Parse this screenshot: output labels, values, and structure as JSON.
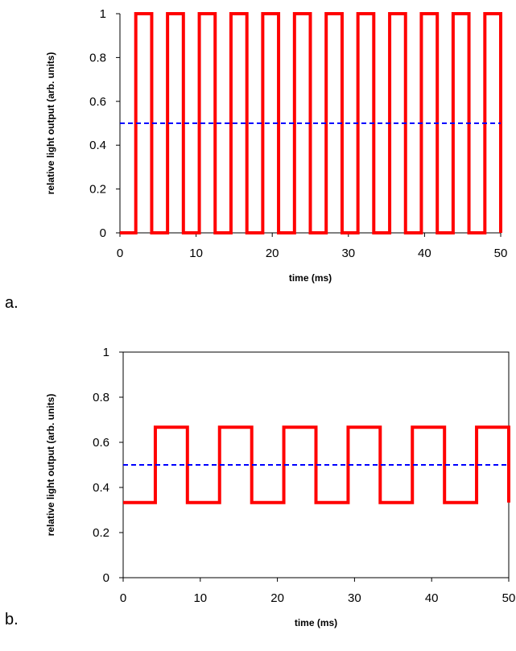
{
  "chart_data": [
    {
      "type": "line",
      "panel_label": "a.",
      "xlabel": "time (ms)",
      "ylabel": "relative light output (arb. units)",
      "xlim": [
        0,
        50
      ],
      "ylim": [
        0,
        1
      ],
      "xticks": [
        "0",
        "10",
        "20",
        "30",
        "40",
        "50"
      ],
      "yticks": [
        "0",
        "0.2",
        "0.4",
        "0.6",
        "0.8",
        "1"
      ],
      "grid": false,
      "legend": "none",
      "series": [
        {
          "style": "solid",
          "color": "#ff0000",
          "x": [
            0,
            2.08,
            2.08,
            4.17,
            4.17,
            6.25,
            6.25,
            8.33,
            8.33,
            10.42,
            10.42,
            12.5,
            12.5,
            14.58,
            14.58,
            16.67,
            16.67,
            18.75,
            18.75,
            20.83,
            20.83,
            22.92,
            22.92,
            25,
            25,
            27.08,
            27.08,
            29.17,
            29.17,
            31.25,
            31.25,
            33.33,
            33.33,
            35.42,
            35.42,
            37.5,
            37.5,
            39.58,
            39.58,
            41.67,
            41.67,
            43.75,
            43.75,
            45.83,
            45.83,
            47.92,
            47.92,
            50,
            50
          ],
          "y": [
            0,
            0,
            1,
            1,
            0,
            0,
            1,
            1,
            0,
            0,
            1,
            1,
            0,
            0,
            1,
            1,
            0,
            0,
            1,
            1,
            0,
            0,
            1,
            1,
            0,
            0,
            1,
            1,
            0,
            0,
            1,
            1,
            0,
            0,
            1,
            1,
            0,
            0,
            1,
            1,
            0,
            0,
            1,
            1,
            0,
            0,
            1,
            1,
            0
          ]
        },
        {
          "style": "dashed",
          "color": "#0000ff",
          "x": [
            0,
            50
          ],
          "y": [
            0.5,
            0.5
          ]
        }
      ]
    },
    {
      "type": "line",
      "panel_label": "b.",
      "xlabel": "time (ms)",
      "ylabel": "relative light output (arb. units)",
      "xlim": [
        0,
        50
      ],
      "ylim": [
        0,
        1
      ],
      "xticks": [
        "0",
        "10",
        "20",
        "30",
        "40",
        "50"
      ],
      "yticks": [
        "0",
        "0.2",
        "0.4",
        "0.6",
        "0.8",
        "1"
      ],
      "grid": false,
      "legend": "none",
      "series": [
        {
          "style": "solid",
          "color": "#ff0000",
          "x": [
            0,
            4.17,
            4.17,
            8.33,
            8.33,
            12.5,
            12.5,
            16.67,
            16.67,
            20.83,
            20.83,
            25,
            25,
            29.17,
            29.17,
            33.33,
            33.33,
            37.5,
            37.5,
            41.67,
            41.67,
            45.83,
            45.83,
            50,
            50
          ],
          "y": [
            0.333,
            0.333,
            0.667,
            0.667,
            0.333,
            0.333,
            0.667,
            0.667,
            0.333,
            0.333,
            0.667,
            0.667,
            0.333,
            0.333,
            0.667,
            0.667,
            0.333,
            0.333,
            0.667,
            0.667,
            0.333,
            0.333,
            0.667,
            0.667,
            0.333
          ]
        },
        {
          "style": "dashed",
          "color": "#0000ff",
          "x": [
            0,
            50
          ],
          "y": [
            0.5,
            0.5
          ]
        }
      ]
    }
  ]
}
